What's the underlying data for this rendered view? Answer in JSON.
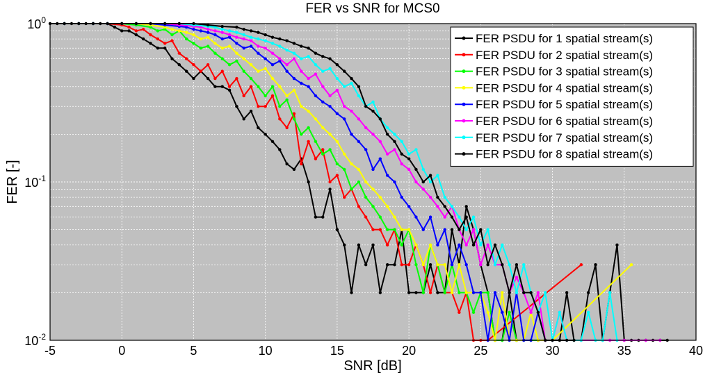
{
  "chart_data": {
    "type": "line",
    "title": "FER vs SNR for MCS0",
    "xlabel": "SNR [dB]",
    "ylabel": "FER [-]",
    "xlim": [
      -5,
      40
    ],
    "ylim": [
      0.01,
      1
    ],
    "yscale": "log",
    "grid": true,
    "legend_position": "top-right",
    "plot_background": "#c0c0c0",
    "x_ticks": [
      "-5",
      "0",
      "5",
      "10",
      "15",
      "20",
      "25",
      "30",
      "35",
      "40"
    ],
    "y_ticks": [
      {
        "base": "10",
        "exp": "-2"
      },
      {
        "base": "10",
        "exp": "-1"
      },
      {
        "base": "10",
        "exp": "0"
      }
    ],
    "series": [
      {
        "name": "FER PSDU for 1 spatial stream(s)",
        "color": "#000000",
        "x": [
          -5,
          -4.5,
          -4,
          -3.5,
          -3,
          -2.5,
          -2,
          -1.5,
          -1,
          -0.5,
          0,
          0.5,
          1,
          1.5,
          2,
          2.5,
          3,
          3.5,
          4,
          4.5,
          5,
          5.5,
          6,
          6.5,
          7,
          7.5,
          8,
          8.5,
          9,
          9.5,
          10,
          10.5,
          11,
          11.5,
          12,
          12.5,
          13,
          13.5,
          14,
          14.5,
          15,
          15.5,
          16,
          16.5,
          17,
          17.5,
          18,
          18.5,
          19,
          19.5,
          20,
          20.5,
          21,
          21.5,
          22,
          22.5,
          23,
          23.5,
          24,
          24.5,
          25,
          25.5,
          26,
          26.5,
          27,
          27.5,
          28,
          28.5,
          29,
          29.5,
          30,
          30.5,
          31,
          31.5,
          32,
          32.5,
          33,
          33.5,
          34,
          34.5,
          35,
          35.5,
          36,
          36.5,
          37,
          37.5,
          38
        ],
        "y": [
          1,
          1,
          1,
          1,
          1,
          1,
          1,
          1,
          1,
          0.95,
          0.9,
          0.9,
          0.85,
          0.8,
          0.75,
          0.7,
          0.7,
          0.6,
          0.55,
          0.5,
          0.45,
          0.5,
          0.45,
          0.4,
          0.4,
          0.38,
          0.3,
          0.25,
          0.28,
          0.22,
          0.2,
          0.18,
          0.16,
          0.13,
          0.12,
          0.14,
          0.1,
          0.06,
          0.06,
          0.09,
          0.05,
          0.04,
          0.02,
          0.04,
          0.03,
          0.04,
          0.02,
          0.03,
          0.03,
          0.05,
          0.02,
          0.02,
          0.02,
          0.03,
          0.02,
          0.02,
          0.05,
          0.03,
          0.07,
          0.05,
          0.03,
          0.02,
          0.01,
          0.01,
          0.02,
          0.01,
          0.01,
          0.01,
          0.01,
          0.01,
          0.01,
          0.01,
          0.02,
          0.01,
          0.01,
          0.02,
          0.03,
          0.01,
          0.02,
          0.04,
          0.01,
          0.01,
          0.01,
          0.01,
          0.01,
          0.01,
          0.01
        ]
      },
      {
        "name": "FER PSDU for 2 spatial stream(s)",
        "color": "#ff0000",
        "x": [
          -4,
          -3,
          -2,
          -1,
          0,
          0.5,
          1,
          1.5,
          2,
          2.5,
          3,
          3.5,
          4,
          4.5,
          5,
          5.5,
          6,
          6.5,
          7,
          7.5,
          8,
          8.5,
          9,
          9.5,
          10,
          10.5,
          11,
          11.5,
          12,
          12.5,
          13,
          13.5,
          14,
          14.5,
          15,
          15.5,
          16,
          16.5,
          17,
          17.5,
          18,
          18.5,
          19,
          19.5,
          20,
          20.5,
          21,
          21.5,
          22,
          22.5,
          23,
          23.5,
          24,
          24.5,
          25,
          25.5,
          32
        ],
        "y": [
          1,
          1,
          1,
          1,
          0.98,
          0.95,
          0.9,
          0.92,
          0.85,
          0.8,
          0.75,
          0.78,
          0.65,
          0.6,
          0.55,
          0.5,
          0.55,
          0.45,
          0.5,
          0.4,
          0.45,
          0.35,
          0.4,
          0.3,
          0.3,
          0.35,
          0.25,
          0.22,
          0.27,
          0.13,
          0.18,
          0.14,
          0.16,
          0.1,
          0.11,
          0.08,
          0.09,
          0.07,
          0.06,
          0.05,
          0.05,
          0.04,
          0.05,
          0.03,
          0.03,
          0.04,
          0.03,
          0.02,
          0.03,
          0.02,
          0.02,
          0.015,
          0.02,
          0.01,
          0.01,
          0.01,
          0.03
        ]
      },
      {
        "name": "FER PSDU for 3 spatial stream(s)",
        "color": "#00ff00",
        "x": [
          -4,
          -3,
          -2,
          -1,
          0,
          1,
          2,
          2.5,
          3,
          3.5,
          4,
          4.5,
          5,
          5.5,
          6,
          6.5,
          7,
          7.5,
          8,
          8.5,
          9,
          9.5,
          10,
          10.5,
          11,
          11.5,
          12,
          12.5,
          13,
          13.5,
          14,
          14.5,
          15,
          15.5,
          16,
          16.5,
          17,
          17.5,
          18,
          18.5,
          19,
          19.5,
          20,
          20.5,
          21,
          21.5,
          22,
          22.5,
          23,
          23.5,
          24,
          24.5,
          25,
          25.5,
          26,
          26.5,
          27,
          27.5,
          28,
          28.5,
          29
        ],
        "y": [
          1,
          1,
          1,
          1,
          1,
          0.98,
          0.95,
          0.9,
          0.92,
          0.85,
          0.9,
          0.8,
          0.75,
          0.7,
          0.72,
          0.65,
          0.6,
          0.55,
          0.58,
          0.5,
          0.45,
          0.4,
          0.35,
          0.4,
          0.3,
          0.33,
          0.25,
          0.2,
          0.22,
          0.18,
          0.15,
          0.16,
          0.13,
          0.12,
          0.09,
          0.1,
          0.08,
          0.07,
          0.06,
          0.05,
          0.05,
          0.04,
          0.05,
          0.03,
          0.02,
          0.04,
          0.03,
          0.02,
          0.03,
          0.02,
          0.02,
          0.015,
          0.02,
          0.02,
          0.01,
          0.01,
          0.015,
          0.01,
          0.01,
          0.01,
          0.01
        ]
      },
      {
        "name": "FER PSDU for 4 spatial stream(s)",
        "color": "#ffff00",
        "x": [
          -4,
          -3,
          -2,
          -1,
          0,
          1,
          2,
          3,
          3.5,
          4,
          4.5,
          5,
          5.5,
          6,
          6.5,
          7,
          7.5,
          8,
          8.5,
          9,
          9.5,
          10,
          10.5,
          11,
          11.5,
          12,
          12.5,
          13,
          13.5,
          14,
          14.5,
          15,
          15.5,
          16,
          16.5,
          17,
          17.5,
          18,
          18.5,
          19,
          19.5,
          20,
          20.5,
          21,
          21.5,
          22,
          22.5,
          23,
          23.5,
          24,
          24.5,
          25,
          25.5,
          26,
          26.5,
          27,
          27.5,
          28,
          28.5,
          29,
          29.5,
          30,
          35.5
        ],
        "y": [
          1,
          1,
          1,
          1,
          1,
          1,
          0.98,
          0.95,
          0.92,
          0.9,
          0.88,
          0.85,
          0.8,
          0.82,
          0.75,
          0.7,
          0.72,
          0.65,
          0.6,
          0.55,
          0.5,
          0.52,
          0.45,
          0.4,
          0.35,
          0.38,
          0.3,
          0.28,
          0.25,
          0.22,
          0.2,
          0.18,
          0.15,
          0.13,
          0.12,
          0.1,
          0.09,
          0.08,
          0.07,
          0.06,
          0.05,
          0.05,
          0.04,
          0.03,
          0.04,
          0.03,
          0.03,
          0.02,
          0.03,
          0.02,
          0.02,
          0.02,
          0.015,
          0.01,
          0.02,
          0.01,
          0.01,
          0.01,
          0.015,
          0.01,
          0.01,
          0.01,
          0.03
        ]
      },
      {
        "name": "FER PSDU for 5 spatial stream(s)",
        "color": "#0000ff",
        "x": [
          -4,
          -3,
          -2,
          -1,
          0,
          1,
          2,
          3,
          4,
          4.5,
          5,
          5.5,
          6,
          6.5,
          7,
          7.5,
          8,
          8.5,
          9,
          9.5,
          10,
          10.5,
          11,
          11.5,
          12,
          12.5,
          13,
          13.5,
          14,
          14.5,
          15,
          15.5,
          16,
          16.5,
          17,
          17.5,
          18,
          18.5,
          19,
          19.5,
          20,
          20.5,
          21,
          21.5,
          22,
          22.5,
          23,
          23.5,
          24,
          24.5,
          25,
          25.5,
          26,
          26.5,
          27,
          27.5,
          28,
          28.5,
          29,
          29.5,
          30
        ],
        "y": [
          1,
          1,
          1,
          1,
          1,
          1,
          1,
          0.98,
          0.96,
          0.95,
          0.92,
          0.9,
          0.88,
          0.85,
          0.8,
          0.82,
          0.75,
          0.7,
          0.72,
          0.65,
          0.6,
          0.55,
          0.58,
          0.5,
          0.45,
          0.42,
          0.4,
          0.35,
          0.32,
          0.3,
          0.27,
          0.25,
          0.2,
          0.18,
          0.16,
          0.12,
          0.14,
          0.11,
          0.1,
          0.08,
          0.07,
          0.06,
          0.05,
          0.06,
          0.04,
          0.05,
          0.03,
          0.04,
          0.03,
          0.02,
          0.02,
          0.01,
          0.02,
          0.015,
          0.01,
          0.02,
          0.01,
          0.01,
          0.015,
          0.01,
          0.01
        ]
      },
      {
        "name": "FER PSDU for 6 spatial stream(s)",
        "color": "#ff00ff",
        "x": [
          -4,
          -3,
          -2,
          -1,
          0,
          1,
          2,
          3,
          4,
          5,
          5.5,
          6,
          6.5,
          7,
          7.5,
          8,
          8.5,
          9,
          9.5,
          10,
          10.5,
          11,
          11.5,
          12,
          12.5,
          13,
          13.5,
          14,
          14.5,
          15,
          15.5,
          16,
          16.5,
          17,
          17.5,
          18,
          18.5,
          19,
          19.5,
          20,
          20.5,
          21,
          21.5,
          22,
          22.5,
          23,
          23.5,
          24,
          24.5,
          25,
          25.5,
          26,
          26.5,
          27,
          27.5,
          28,
          28.5,
          29,
          29.5,
          30,
          30.5,
          31,
          32,
          34,
          35,
          36.5,
          37.5
        ],
        "y": [
          1,
          1,
          1,
          1,
          1,
          1,
          1,
          1,
          0.98,
          0.96,
          0.95,
          0.92,
          0.9,
          0.88,
          0.85,
          0.82,
          0.8,
          0.78,
          0.72,
          0.7,
          0.65,
          0.6,
          0.55,
          0.6,
          0.5,
          0.45,
          0.48,
          0.4,
          0.35,
          0.38,
          0.3,
          0.28,
          0.25,
          0.22,
          0.2,
          0.18,
          0.15,
          0.16,
          0.13,
          0.12,
          0.1,
          0.09,
          0.08,
          0.07,
          0.06,
          0.07,
          0.05,
          0.04,
          0.05,
          0.03,
          0.04,
          0.03,
          0.03,
          0.02,
          0.025,
          0.02,
          0.015,
          0.02,
          0.01,
          0.01,
          0.015,
          0.01,
          0.01,
          0.01,
          0.01,
          0.01,
          0.01
        ]
      },
      {
        "name": "FER PSDU for 7 spatial stream(s)",
        "color": "#00ffff",
        "x": [
          -4,
          -3,
          -2,
          -1,
          0,
          1,
          2,
          3,
          4,
          5,
          6,
          6.5,
          7,
          7.5,
          8,
          8.5,
          9,
          9.5,
          10,
          10.5,
          11,
          11.5,
          12,
          12.5,
          13,
          13.5,
          14,
          14.5,
          15,
          15.5,
          16,
          16.5,
          17,
          17.5,
          18,
          18.5,
          19,
          19.5,
          20,
          20.5,
          21,
          21.5,
          22,
          22.5,
          23,
          23.5,
          24,
          24.5,
          25,
          25.5,
          26,
          26.5,
          27,
          27.5,
          28,
          28.5,
          29,
          29.5,
          30,
          30.5,
          31,
          31.5,
          32,
          32.5,
          33,
          33.5,
          34,
          34.5
        ],
        "y": [
          1,
          1,
          1,
          1,
          1,
          1,
          1,
          1,
          1,
          0.98,
          0.96,
          0.95,
          0.92,
          0.9,
          0.88,
          0.85,
          0.82,
          0.8,
          0.78,
          0.75,
          0.72,
          0.68,
          0.65,
          0.6,
          0.62,
          0.55,
          0.5,
          0.52,
          0.45,
          0.4,
          0.42,
          0.35,
          0.3,
          0.32,
          0.25,
          0.22,
          0.2,
          0.18,
          0.15,
          0.16,
          0.12,
          0.1,
          0.11,
          0.08,
          0.07,
          0.06,
          0.05,
          0.06,
          0.04,
          0.05,
          0.03,
          0.04,
          0.03,
          0.02,
          0.03,
          0.02,
          0.015,
          0.02,
          0.01,
          0.015,
          0.01,
          0.01,
          0.01,
          0.015,
          0.01,
          0.01,
          0.02,
          0.01
        ]
      },
      {
        "name": "FER PSDU for 8 spatial stream(s)",
        "color": "#000000",
        "x": [
          -4,
          -3,
          -2,
          -1,
          0,
          1,
          2,
          3,
          4,
          5,
          6,
          7,
          8,
          8.5,
          9,
          9.5,
          10,
          10.5,
          11,
          11.5,
          12,
          12.5,
          13,
          13.5,
          14,
          14.5,
          15,
          15.5,
          16,
          16.5,
          17,
          17.5,
          18,
          18.5,
          19,
          19.5,
          20,
          20.5,
          21,
          21.5,
          22,
          22.5,
          23,
          23.5,
          24,
          24.5,
          25,
          25.5,
          26,
          26.5,
          27,
          27.5,
          28,
          28.5,
          29,
          29.5,
          30,
          30.5,
          31,
          31.5
        ],
        "y": [
          1,
          1,
          1,
          1,
          1,
          1,
          1,
          1,
          1,
          1,
          0.98,
          0.96,
          0.95,
          0.92,
          0.9,
          0.88,
          0.85,
          0.82,
          0.8,
          0.78,
          0.75,
          0.72,
          0.7,
          0.65,
          0.62,
          0.6,
          0.55,
          0.5,
          0.45,
          0.4,
          0.3,
          0.28,
          0.25,
          0.2,
          0.18,
          0.15,
          0.14,
          0.12,
          0.1,
          0.11,
          0.08,
          0.07,
          0.06,
          0.05,
          0.06,
          0.04,
          0.05,
          0.03,
          0.04,
          0.03,
          0.02,
          0.03,
          0.02,
          0.02,
          0.015,
          0.01,
          0.01,
          0.01,
          0.01,
          0.01
        ]
      }
    ]
  }
}
